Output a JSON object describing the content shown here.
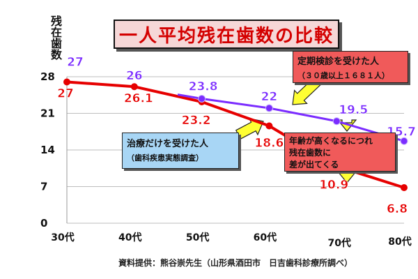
{
  "title": "一人平均残在歯数の比較",
  "ylabel": "残在歯数",
  "source": "資料提供：熊谷崇先生（山形県酒田市　日吉歯科診療所調べ）",
  "callouts": {
    "periodic_title": "定期検診を受けた人",
    "periodic_sub": "（３０歳以上１６８１人）",
    "treated_title": "治療だけを受けた人",
    "treated_sub": "（歯科疾患実態調査）",
    "age_line1": "年齢が高くなるにつれ",
    "age_line2": "残在歯数に",
    "age_line3": "差が出てくる"
  },
  "colors": {
    "treated": "#e60000",
    "periodic": "#7b2cff",
    "arrow": "#ffff33",
    "title_text": "#d40000"
  },
  "chart_data": {
    "type": "line",
    "x": [
      "30代",
      "40代",
      "50代",
      "60代",
      "70代",
      "80代"
    ],
    "ylim": [
      0,
      28
    ],
    "yticks": [
      0,
      7,
      14,
      21,
      28
    ],
    "grid": true,
    "series": [
      {
        "name": "治療だけを受けた人",
        "x": [
          "30代",
          "40代",
          "50代",
          "60代",
          "70代",
          "80代"
        ],
        "values": [
          27,
          26.1,
          23.2,
          18.6,
          10.9,
          6.8
        ],
        "labels": [
          "27",
          "26.1",
          "23.2",
          "18.6",
          "10.9",
          "6.8"
        ]
      },
      {
        "name": "定期検診を受けた人",
        "x": [
          "30代",
          "40代",
          "50代",
          "60代",
          "70代",
          "80代"
        ],
        "values": [
          27,
          26,
          23.8,
          22,
          19.5,
          15.7
        ],
        "labels": [
          "27",
          "26",
          "23.8",
          "22",
          "19.5",
          "15.7"
        ]
      }
    ]
  }
}
